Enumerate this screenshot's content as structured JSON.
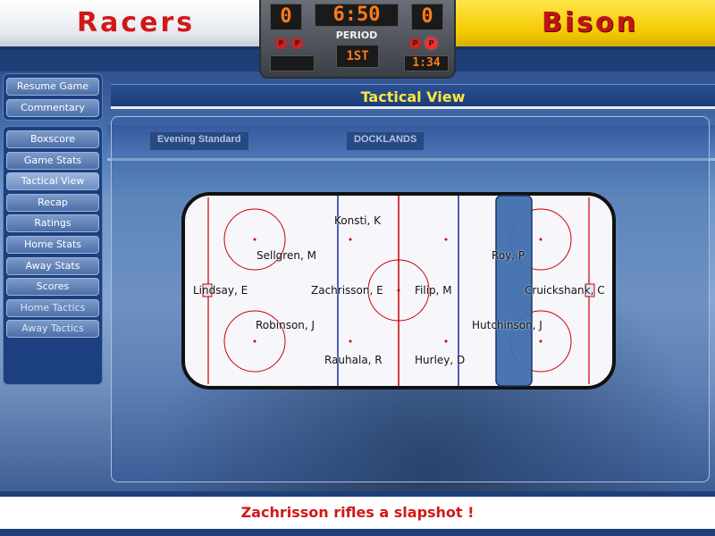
{
  "teams": {
    "home": {
      "name": "Racers",
      "score": "0"
    },
    "away": {
      "name": "Bison",
      "score": "0"
    }
  },
  "scoreboard": {
    "clock": "6:50",
    "period_label": "PERIOD",
    "period": "1ST",
    "penalty_clock": "1:34",
    "penalty_marker": "P"
  },
  "menu": {
    "resume": "Resume Game",
    "commentary": "Commentary",
    "items": [
      {
        "label": "Boxscore"
      },
      {
        "label": "Game Stats"
      },
      {
        "label": "Tactical View"
      },
      {
        "label": "Recap"
      },
      {
        "label": "Ratings"
      },
      {
        "label": "Home Stats"
      },
      {
        "label": "Away Stats"
      },
      {
        "label": "Scores"
      },
      {
        "label": "Home Tactics"
      },
      {
        "label": "Away Tactics"
      }
    ],
    "active": "Tactical View"
  },
  "view": {
    "title": "Tactical View"
  },
  "arena_ads": [
    "Evening Standard",
    "DOCKLANDS"
  ],
  "players": [
    {
      "name": "Konsti, K"
    },
    {
      "name": "Sellgren, M"
    },
    {
      "name": "Lindsay, E"
    },
    {
      "name": "Zachrisson, E"
    },
    {
      "name": "Robinson, J"
    },
    {
      "name": "Rauhala, R"
    },
    {
      "name": "Filip, M"
    },
    {
      "name": "Hurley, D"
    },
    {
      "name": "Roy, P"
    },
    {
      "name": "Cruickshank, C"
    },
    {
      "name": "Hutchinson, J"
    }
  ],
  "status": {
    "message": "Zachrisson rifles a slapshot !"
  },
  "colors": {
    "home_banner": "#ffffff",
    "away_banner": "#f3c900",
    "team_name": "#d11818",
    "title": "#ffe640",
    "led": "#ff7a1a",
    "rink_line_red": "#cc0000",
    "rink_line_blue": "#1a2aa0",
    "selection_zone": "#3f6fae"
  }
}
